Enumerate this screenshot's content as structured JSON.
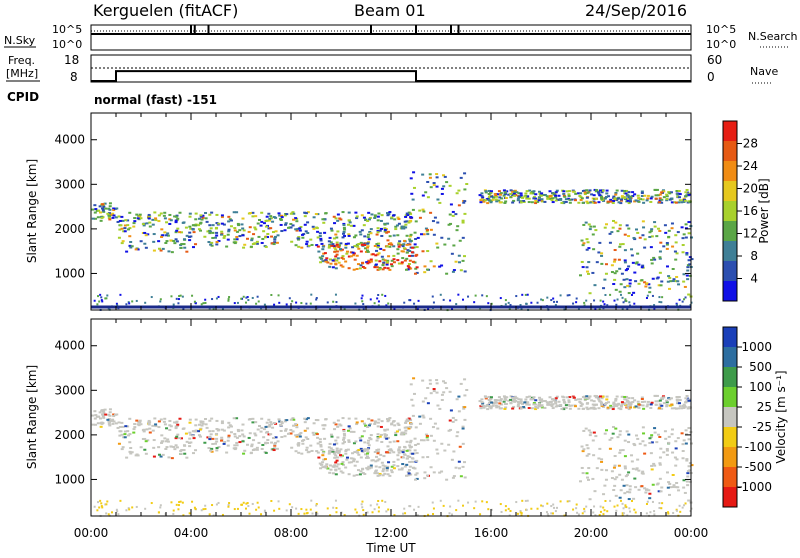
{
  "header": {
    "station": "Kerguelen (fitACF)",
    "beam": "Beam 01",
    "date": "24/Sep/2016"
  },
  "panel_labels": {
    "nsky": "N.Sky",
    "nsearch": "N.Search",
    "freq_line1": "Freq.",
    "freq_line2": "[MHz]",
    "nave": "Nave",
    "cpid": "CPID",
    "cpid_value": "normal (fast) -151"
  },
  "colors": {
    "power": [
      "#1010e6",
      "#2c4fb0",
      "#3f7f96",
      "#5aa646",
      "#a8d12c",
      "#e6c81e",
      "#f08c14",
      "#e65a14",
      "#e61e14"
    ],
    "velocity_pos": [
      "#1a3fb8",
      "#2d6ea0",
      "#3e9b4a",
      "#6ccf2e"
    ],
    "velocity_zero": "#c6c6c0",
    "velocity_neg": [
      "#f2cc14",
      "#f29a12",
      "#ef5a14",
      "#e61a14"
    ]
  },
  "chart_data": [
    {
      "type": "line",
      "name": "noise",
      "series": [
        {
          "name": "N.Sky",
          "style": "solid"
        },
        {
          "name": "N.Search",
          "style": "dotted"
        }
      ],
      "left_ticks": [
        "10^5",
        "10^0"
      ],
      "right_ticks": [
        "10^5",
        "10^0"
      ],
      "spikes_hours": [
        4.0,
        4.15,
        4.7,
        11.2,
        13.0,
        14.4,
        14.7
      ],
      "baseline": "10^5"
    },
    {
      "type": "line",
      "name": "frequency",
      "left_ticks": [
        "18",
        "8"
      ],
      "right_ticks": [
        "60",
        "0"
      ],
      "series": [
        {
          "name": "Freq.",
          "unit": "MHz",
          "x": [
            0,
            1.0,
            1.0,
            13.0,
            13.0,
            24
          ],
          "y": [
            8,
            8,
            12.5,
            12.5,
            8,
            8
          ]
        },
        {
          "name": "Nave",
          "style": "dotted",
          "constant": 15
        }
      ]
    },
    {
      "type": "heatmap",
      "name": "power",
      "ylabel": "Slant Range [km]",
      "yticks": [
        1000,
        2000,
        3000,
        4000
      ],
      "ylim": [
        180,
        4600
      ],
      "colorbar": {
        "label": "Power [dB]",
        "ticks": [
          "4",
          "8",
          "12",
          "16",
          "20",
          "24",
          "28"
        ]
      },
      "echo_bands": [
        {
          "t0": 0,
          "t1": 1.0,
          "r0": 2200,
          "r1": 2600
        },
        {
          "t0": 1.0,
          "t1": 4.0,
          "r0": 1500,
          "r1": 2400
        },
        {
          "t0": 4.0,
          "t1": 13.0,
          "r0": 1600,
          "r1": 2400
        },
        {
          "t0": 9.0,
          "t1": 13.0,
          "r0": 1100,
          "r1": 1700
        },
        {
          "t0": 12.5,
          "t1": 15.0,
          "r0": 1000,
          "r1": 3300
        },
        {
          "t0": 15.5,
          "t1": 24.0,
          "r0": 2600,
          "r1": 2900
        },
        {
          "t0": 19.5,
          "t1": 24.0,
          "r0": 500,
          "r1": 2200
        }
      ]
    },
    {
      "type": "heatmap",
      "name": "velocity",
      "ylabel": "Slant Range [km]",
      "yticks": [
        1000,
        2000,
        3000,
        4000
      ],
      "ylim": [
        180,
        4600
      ],
      "colorbar": {
        "label": "Velocity [m s⁻¹]",
        "ticks": [
          "1000",
          "500",
          "100",
          "25",
          "-25",
          "-100",
          "-500",
          "-1000"
        ]
      },
      "xlabel": "Time UT",
      "xticks": [
        "00:00",
        "04:00",
        "08:00",
        "12:00",
        "16:00",
        "20:00",
        "00:00"
      ],
      "xlim": [
        0,
        24
      ]
    }
  ]
}
